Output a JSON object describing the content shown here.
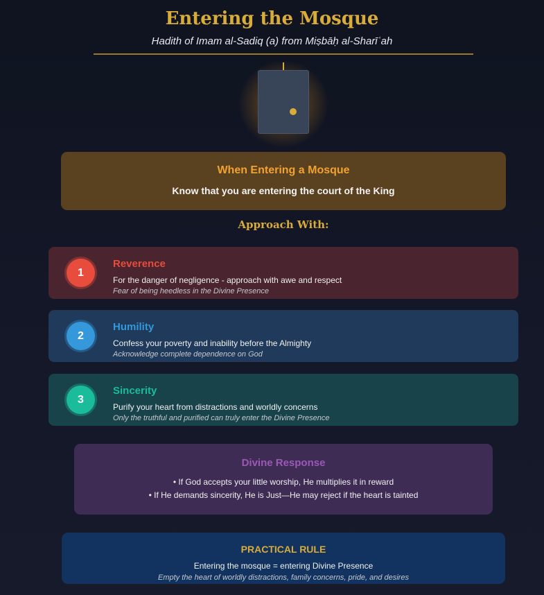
{
  "header": {
    "title": "Entering the Mosque",
    "subtitle": "Hadith of Imam al-Sadiq (a) from Miṣbāḥ al-Sharīʿah"
  },
  "illustration": {
    "icon": "glowing-door-icon",
    "glow_color": "#d9ab38"
  },
  "intro": {
    "heading": "When Entering a Mosque",
    "text": "Know that you are entering the court of the King"
  },
  "approach_heading": "Approach With:",
  "steps": [
    {
      "number": "1",
      "name": "Reverence",
      "description": "For the danger of negligence - approach with awe and respect",
      "note": "Fear of being heedless in the Divine Presence",
      "color": "#e74c3c"
    },
    {
      "number": "2",
      "name": "Humility",
      "description": "Confess your poverty and inability before the Almighty",
      "note": "Acknowledge complete dependence on God",
      "color": "#3498db"
    },
    {
      "number": "3",
      "name": "Sincerity",
      "description": "Purify your heart from distractions and worldly concerns",
      "note": "Only the truthful and purified can truly enter the Divine Presence",
      "color": "#1abc9c"
    }
  ],
  "divine_response": {
    "heading": "Divine Response",
    "lines": [
      "• If God accepts your little worship, He multiplies it in reward",
      "• If He demands sincerity, He is Just—He may reject if the heart is tainted"
    ],
    "color": "#9b59b6"
  },
  "practical_rule": {
    "heading": "PRACTICAL RULE",
    "text": "Entering the mosque = entering Divine Presence",
    "note": "Empty the heart of worldly distractions, family concerns, pride, and desires"
  }
}
